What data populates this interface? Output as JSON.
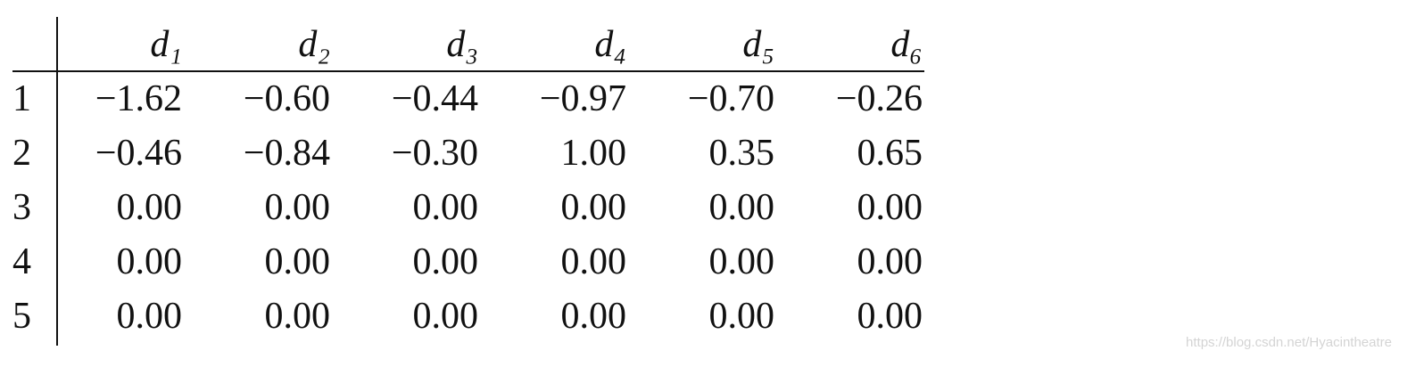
{
  "table": {
    "header": [
      "d₁",
      "d₂",
      "d₃",
      "d₄",
      "d₅",
      "d₆"
    ],
    "rows": [
      [
        "1",
        "−1.62",
        "−0.60",
        "−0.44",
        "−0.97",
        "−0.70",
        "−0.26"
      ],
      [
        "2",
        "−0.46",
        "−0.84",
        "−0.30",
        "1.00",
        "0.35",
        "0.65"
      ],
      [
        "3",
        "0.00",
        "0.00",
        "0.00",
        "0.00",
        "0.00",
        "0.00"
      ],
      [
        "4",
        "0.00",
        "0.00",
        "0.00",
        "0.00",
        "0.00",
        "0.00"
      ],
      [
        "5",
        "0.00",
        "0.00",
        "0.00",
        "0.00",
        "0.00",
        "0.00"
      ]
    ]
  },
  "watermark": "https://blog.csdn.net/Hyacintheatre"
}
